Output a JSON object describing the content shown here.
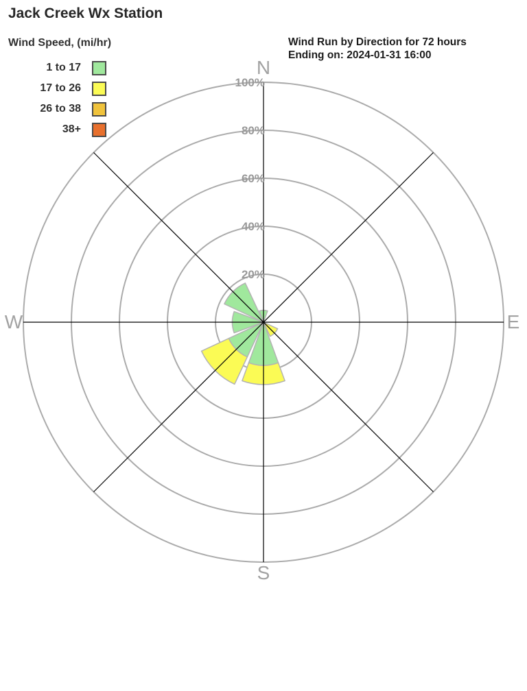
{
  "header": {
    "station_title": "Jack Creek Wx Station",
    "chart_title_line1": "Wind Run by Direction for 72 hours",
    "chart_title_line2": "Ending on: 2024-01-31 16:00"
  },
  "legend": {
    "title": "Wind Speed, (mi/hr)",
    "items": [
      {
        "label": "1 to 17",
        "color": "#a0e89d"
      },
      {
        "label": "17 to 26",
        "color": "#fbfb55"
      },
      {
        "label": "26 to 38",
        "color": "#f0c33c"
      },
      {
        "label": "38+",
        "color": "#e8702d"
      }
    ]
  },
  "chart_data": {
    "type": "windrose",
    "title": "Wind Run by Direction for 72 hours, Ending on: 2024-01-31 16:00",
    "units": "percent of wind run",
    "directions": [
      "N",
      "NE",
      "E",
      "SE",
      "S",
      "SW",
      "W",
      "NW"
    ],
    "series": [
      {
        "name": "1 to 17 mi/hr",
        "color": "#a0e89d",
        "values": [
          5,
          0,
          0,
          0,
          18,
          16,
          13,
          18
        ]
      },
      {
        "name": "17 to 26 mi/hr",
        "color": "#fbfb55",
        "values": [
          0,
          0,
          0,
          6.5,
          8,
          12.5,
          0,
          0
        ]
      },
      {
        "name": "26 to 38 mi/hr",
        "color": "#f0c33c",
        "values": [
          0,
          0,
          0,
          0,
          0,
          0,
          0,
          0
        ]
      },
      {
        "name": "38+ mi/hr",
        "color": "#e8702d",
        "values": [
          0,
          0,
          0,
          0,
          0,
          0,
          0,
          0
        ]
      }
    ],
    "radial_ticks": [
      20,
      40,
      60,
      80,
      100
    ],
    "radial_tick_labels": [
      "20%",
      "40%",
      "60%",
      "80%",
      "100%"
    ],
    "radial_max": 100,
    "compass_labels": [
      "N",
      "E",
      "S",
      "W"
    ],
    "petal_width_deg": 40,
    "grid": "on",
    "grid_color": "#ababab",
    "axis_color": "#000000",
    "tick_label_color": "#999999",
    "compass_label_color": "#a2a2a2",
    "petal_outline_color": "#b3b3b3"
  }
}
